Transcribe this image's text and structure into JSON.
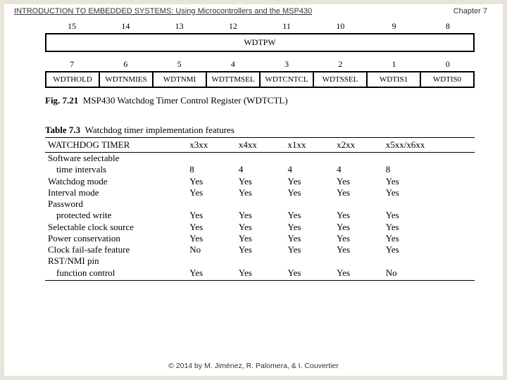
{
  "header": {
    "title": "INTRODUCTION TO EMBEDDED SYSTEMS: Using Microcontrollers and the MSP430",
    "chapter": "Chapter 7"
  },
  "register": {
    "bits_high": [
      "15",
      "14",
      "13",
      "12",
      "11",
      "10",
      "9",
      "8"
    ],
    "field_high": "WDTPW",
    "bits_low": [
      "7",
      "6",
      "5",
      "4",
      "3",
      "2",
      "1",
      "0"
    ],
    "fields_low": [
      "WDTHOLD",
      "WDTNMIES",
      "WDTNMI",
      "WDTTMSEL",
      "WDTCNTCL",
      "WDTSSEL",
      "WDTIS1",
      "WDTIS0"
    ]
  },
  "fig_caption": {
    "label": "Fig. 7.21",
    "text": "MSP430 Watchdog Timer Control Register (WDTCTL)"
  },
  "table_caption": {
    "label": "Table 7.3",
    "text": "Watchdog timer implementation features"
  },
  "feat": {
    "head": [
      "WATCHDOG TIMER",
      "x3xx",
      "x4xx",
      "x1xx",
      "x2xx",
      "x5xx/x6xx"
    ],
    "rows": [
      {
        "label": "Software selectable",
        "indent": false,
        "vals": [
          "",
          "",
          "",
          "",
          ""
        ]
      },
      {
        "label": "time intervals",
        "indent": true,
        "vals": [
          "8",
          "4",
          "4",
          "4",
          "8"
        ]
      },
      {
        "label": "Watchdog mode",
        "indent": false,
        "vals": [
          "Yes",
          "Yes",
          "Yes",
          "Yes",
          "Yes"
        ]
      },
      {
        "label": "Interval mode",
        "indent": false,
        "vals": [
          "Yes",
          "Yes",
          "Yes",
          "Yes",
          "Yes"
        ]
      },
      {
        "label": "Password",
        "indent": false,
        "vals": [
          "",
          "",
          "",
          "",
          ""
        ]
      },
      {
        "label": "protected write",
        "indent": true,
        "vals": [
          "Yes",
          "Yes",
          "Yes",
          "Yes",
          "Yes"
        ]
      },
      {
        "label": "Selectable clock source",
        "indent": false,
        "vals": [
          "Yes",
          "Yes",
          "Yes",
          "Yes",
          "Yes"
        ]
      },
      {
        "label": "Power conservation",
        "indent": false,
        "vals": [
          "Yes",
          "Yes",
          "Yes",
          "Yes",
          "Yes"
        ]
      },
      {
        "label": "Clock fail-safe feature",
        "indent": false,
        "vals": [
          "No",
          "Yes",
          "Yes",
          "Yes",
          "Yes"
        ]
      },
      {
        "label": "RST/NMI pin",
        "indent": false,
        "vals": [
          "",
          "",
          "",
          "",
          ""
        ]
      },
      {
        "label": "function control",
        "indent": true,
        "vals": [
          "Yes",
          "Yes",
          "Yes",
          "Yes",
          "No"
        ]
      }
    ]
  },
  "footer": "© 2014 by M. Jiménez, R. Palomera, & I. Couvertier"
}
